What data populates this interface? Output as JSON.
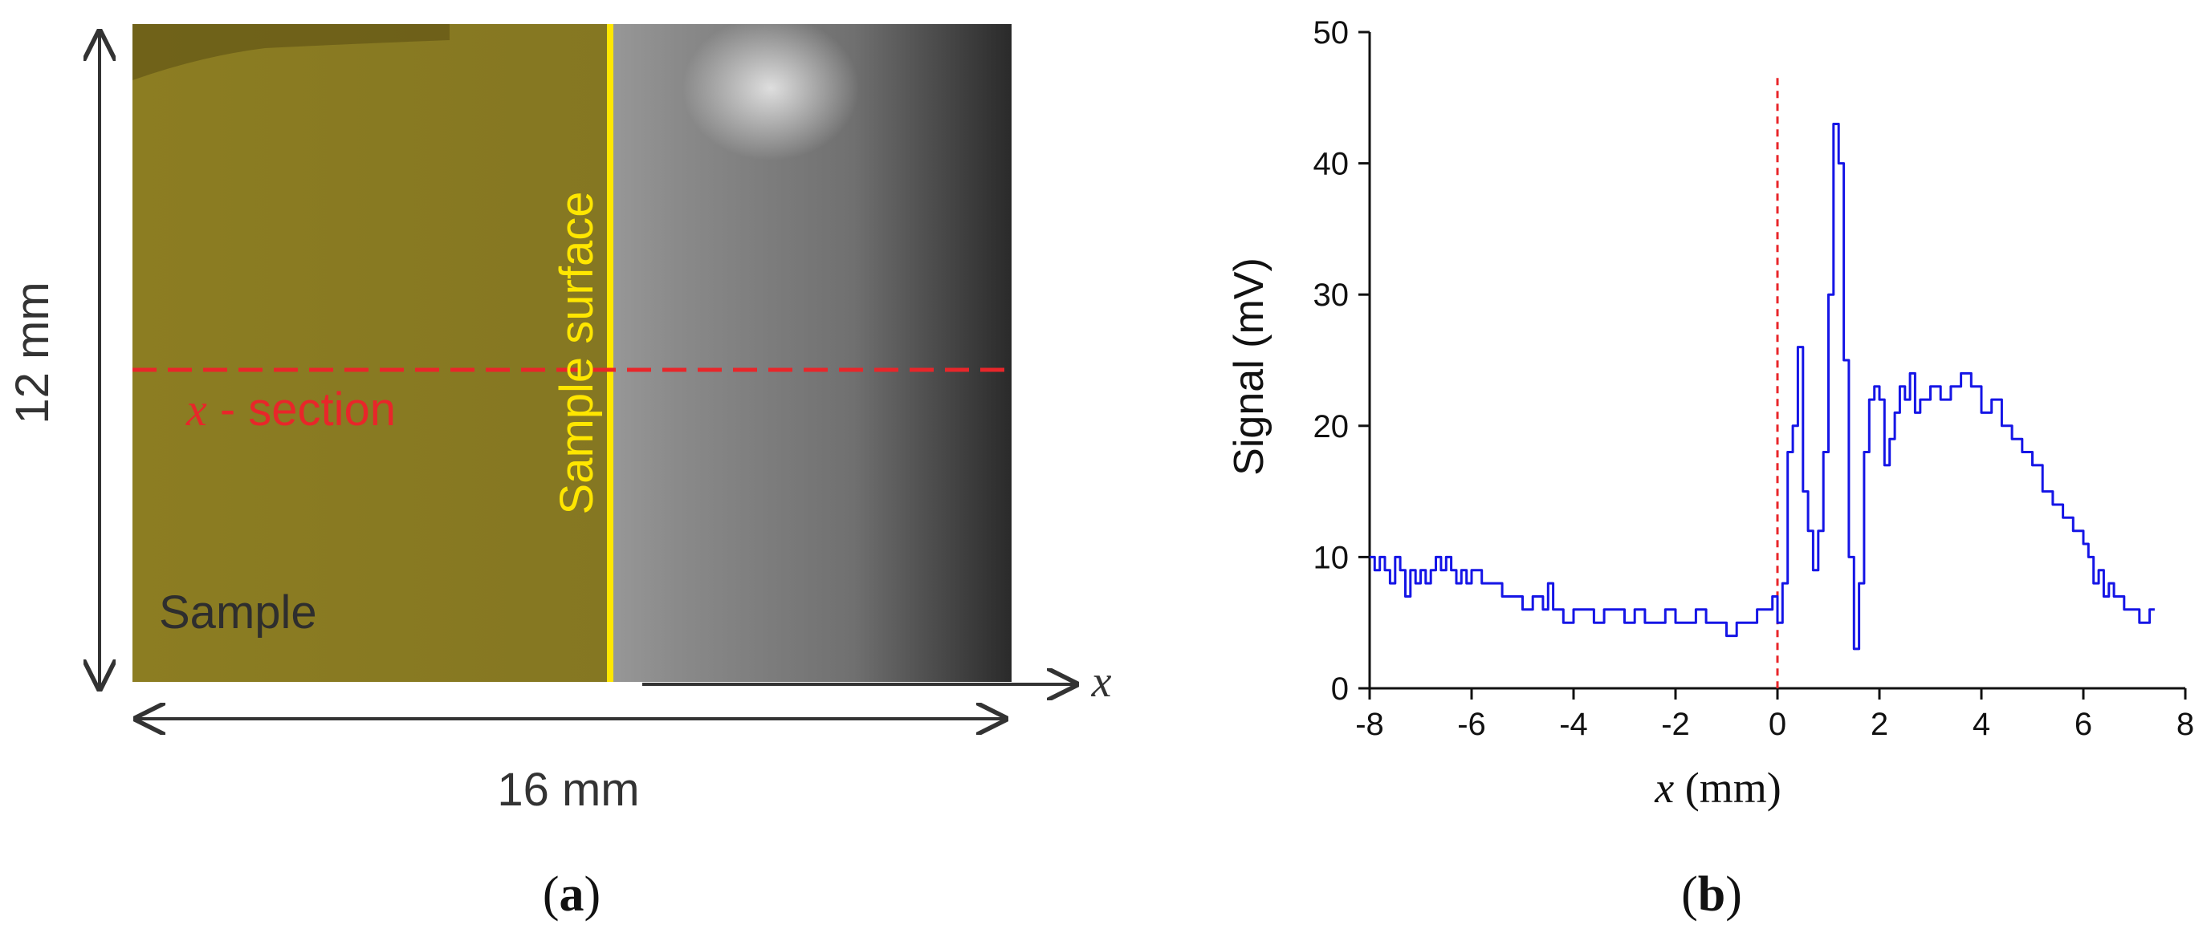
{
  "panel_a": {
    "height_label": "12 mm",
    "width_label": "16 mm",
    "surface_label": "Sample surface",
    "section_label_var": "x",
    "section_label_text": " - section",
    "sample_label": "Sample",
    "axis_var": "x",
    "caption": "a",
    "colors": {
      "sample_overlay": "#8a7a1e",
      "surface_line": "#ffe600",
      "section_line": "#e8262a",
      "section_text": "#e8262a",
      "sample_text": "#2e2e2e"
    }
  },
  "panel_b": {
    "caption": "b",
    "xlabel_var": "x",
    "xlabel_unit": " (mm)",
    "ylabel": "Signal (mV)",
    "xtick_labels": [
      "-8",
      "-6",
      "-4",
      "-2",
      "0",
      "2",
      "4",
      "6",
      "8"
    ],
    "ytick_labels": [
      "0",
      "10",
      "20",
      "30",
      "40",
      "50"
    ]
  },
  "chart_data": {
    "type": "line",
    "title": "",
    "xlabel": "x (mm)",
    "ylabel": "Signal (mV)",
    "xlim": [
      -8,
      8
    ],
    "ylim": [
      0,
      50
    ],
    "xticks": [
      -8,
      -6,
      -4,
      -2,
      0,
      2,
      4,
      6,
      8
    ],
    "yticks": [
      0,
      10,
      20,
      30,
      40,
      50
    ],
    "reference_line": {
      "x": 0,
      "style": "dashed",
      "color": "#e8262a"
    },
    "series": [
      {
        "name": "Signal",
        "color": "#1515e6",
        "x": [
          -8.0,
          -7.9,
          -7.8,
          -7.7,
          -7.6,
          -7.5,
          -7.4,
          -7.3,
          -7.2,
          -7.1,
          -7.0,
          -6.9,
          -6.8,
          -6.7,
          -6.6,
          -6.5,
          -6.4,
          -6.3,
          -6.2,
          -6.1,
          -6.0,
          -5.8,
          -5.6,
          -5.4,
          -5.2,
          -5.0,
          -4.8,
          -4.6,
          -4.5,
          -4.4,
          -4.3,
          -4.2,
          -4.0,
          -3.8,
          -3.6,
          -3.4,
          -3.2,
          -3.0,
          -2.8,
          -2.6,
          -2.4,
          -2.2,
          -2.0,
          -1.8,
          -1.6,
          -1.4,
          -1.2,
          -1.0,
          -0.8,
          -0.6,
          -0.4,
          -0.2,
          -0.1,
          0.0,
          0.1,
          0.2,
          0.3,
          0.4,
          0.5,
          0.6,
          0.7,
          0.8,
          0.9,
          1.0,
          1.1,
          1.2,
          1.3,
          1.4,
          1.5,
          1.6,
          1.7,
          1.8,
          1.9,
          2.0,
          2.1,
          2.2,
          2.3,
          2.4,
          2.5,
          2.6,
          2.7,
          2.8,
          3.0,
          3.2,
          3.4,
          3.6,
          3.8,
          4.0,
          4.2,
          4.4,
          4.6,
          4.8,
          5.0,
          5.2,
          5.4,
          5.6,
          5.8,
          6.0,
          6.1,
          6.2,
          6.3,
          6.4,
          6.5,
          6.6,
          6.8,
          7.0,
          7.1,
          7.2,
          7.3,
          7.4
        ],
        "values": [
          10,
          9,
          10,
          9,
          8,
          10,
          9,
          7,
          9,
          8,
          9,
          8,
          9,
          10,
          9,
          10,
          9,
          8,
          9,
          8,
          9,
          8,
          8,
          7,
          7,
          6,
          7,
          6,
          8,
          6,
          6,
          5,
          6,
          6,
          5,
          6,
          6,
          5,
          6,
          5,
          5,
          6,
          5,
          5,
          6,
          5,
          5,
          4,
          5,
          5,
          6,
          6,
          7,
          5,
          8,
          18,
          20,
          26,
          15,
          12,
          9,
          12,
          18,
          30,
          43,
          40,
          25,
          10,
          3,
          8,
          18,
          22,
          23,
          22,
          17,
          19,
          21,
          23,
          22,
          24,
          21,
          22,
          23,
          22,
          23,
          24,
          23,
          21,
          22,
          20,
          19,
          18,
          17,
          15,
          14,
          13,
          12,
          11,
          10,
          8,
          9,
          7,
          8,
          7,
          6,
          6,
          5,
          5,
          6,
          6
        ]
      }
    ]
  }
}
